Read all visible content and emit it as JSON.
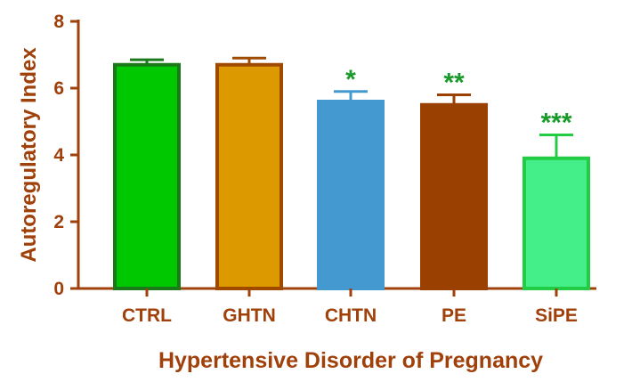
{
  "chart_data": {
    "type": "bar",
    "categories": [
      "CTRL",
      "GHTN",
      "CHTN",
      "PE",
      "SiPE"
    ],
    "values": [
      6.7,
      6.7,
      5.6,
      5.5,
      3.9
    ],
    "errors": [
      0.15,
      0.2,
      0.3,
      0.3,
      0.7
    ],
    "significance": [
      "",
      "",
      "*",
      "**",
      "***"
    ],
    "xlabel": "Hypertensive Disorder of Pregnancy",
    "ylabel": "Autoregulatory Index",
    "ylim": [
      0,
      8
    ],
    "yticks": [
      "0",
      "2",
      "4",
      "6",
      "8"
    ],
    "grid": false,
    "colors": {
      "axis": "#a0400a",
      "significance": "#1a9a2a",
      "bar_fills": [
        "#00c800",
        "#dd9900",
        "#4499d0",
        "#9a4000",
        "#44ee88"
      ],
      "bar_strokes": [
        "#1a7a1a",
        "#a04a00",
        "#4499d0",
        "#9a4000",
        "#22cc44"
      ],
      "error_bars": [
        "#1a7a1a",
        "#a04a00",
        "#4499d0",
        "#9a4000",
        "#22cc44"
      ]
    }
  }
}
